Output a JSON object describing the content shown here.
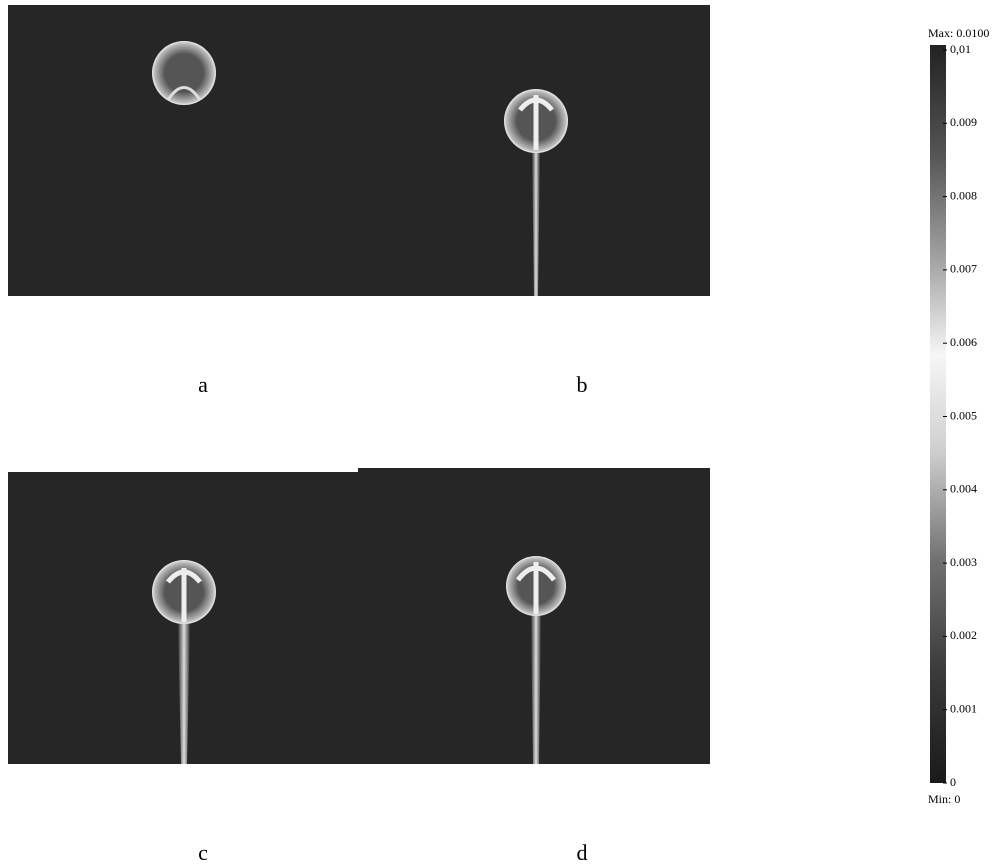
{
  "panels": [
    {
      "label": "a"
    },
    {
      "label": "b"
    },
    {
      "label": "c"
    },
    {
      "label": "d"
    }
  ],
  "colorbar": {
    "max_label": "Max: 0.0100",
    "min_label": "Min: 0",
    "lim": [
      0,
      0.01
    ],
    "ticks": [
      0,
      0.001,
      0.002,
      0.003,
      0.004,
      0.005,
      0.006,
      0.007,
      0.008,
      0.009,
      {
        "value": 0.01,
        "label": "0,01"
      }
    ]
  }
}
